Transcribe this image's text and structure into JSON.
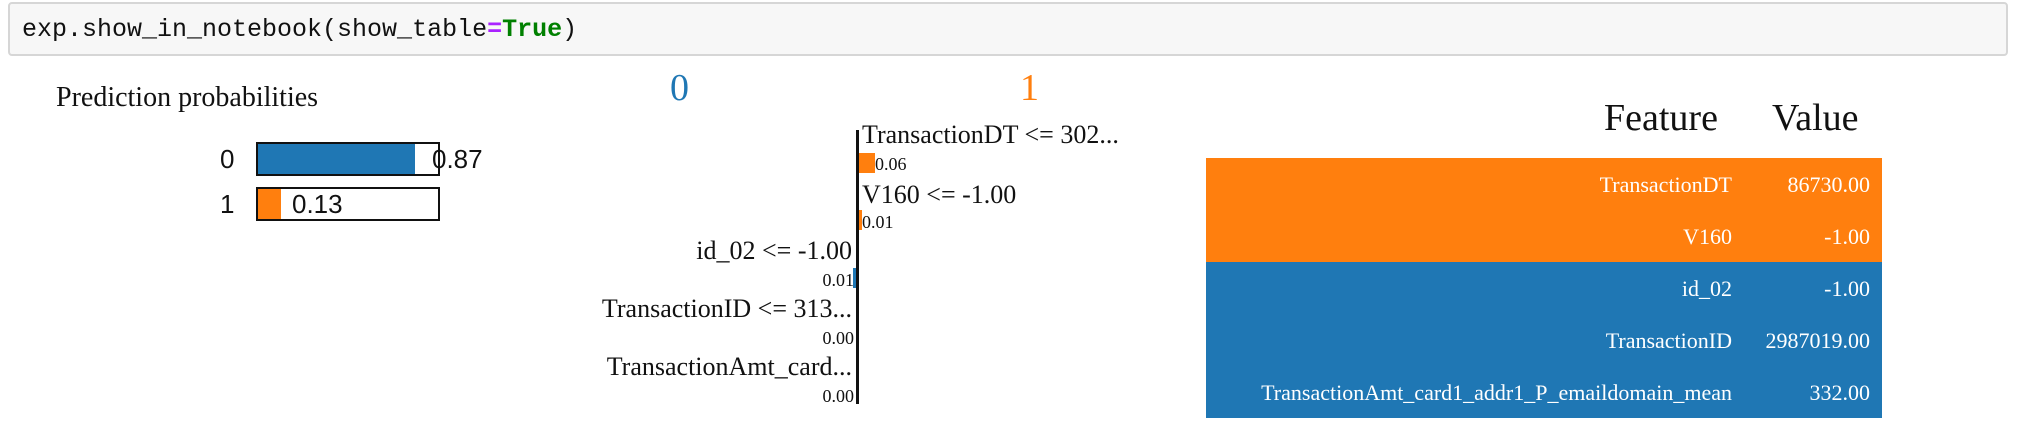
{
  "code_cell": {
    "prefix": "exp.show_in_notebook(show_table",
    "operator": "=",
    "keyword": "True",
    "suffix": ")"
  },
  "colors": {
    "class_0": "#1f77b4",
    "class_1": "#ff7f0e",
    "operator": "#aa22ff",
    "keyword": "#008000"
  },
  "prediction_probabilities": {
    "title": "Prediction probabilities",
    "items": [
      {
        "label": "0",
        "value": 0.87,
        "value_text": "0.87",
        "color": "#1f77b4"
      },
      {
        "label": "1",
        "value": 0.13,
        "value_text": "0.13",
        "color": "#ff7f0e"
      }
    ]
  },
  "explanation": {
    "class_labels": [
      "0",
      "1"
    ],
    "features": [
      {
        "condition": "TransactionDT <= 302...",
        "weight": 0.06,
        "weight_text": "0.06",
        "side": "1"
      },
      {
        "condition": "V160 <= -1.00",
        "weight": 0.01,
        "weight_text": "0.01",
        "side": "1"
      },
      {
        "condition": "id_02 <= -1.00",
        "weight": 0.01,
        "weight_text": "0.01",
        "side": "0"
      },
      {
        "condition": "TransactionID <= 313...",
        "weight": 0.0,
        "weight_text": "0.00",
        "side": "0"
      },
      {
        "condition": "TransactionAmt_card...",
        "weight": 0.0,
        "weight_text": "0.00",
        "side": "0"
      }
    ]
  },
  "feature_table": {
    "headers": [
      "Feature",
      "Value"
    ],
    "rows": [
      {
        "feature": "TransactionDT",
        "value": "86730.00",
        "color": "#ff7f0e"
      },
      {
        "feature": "V160",
        "value": "-1.00",
        "color": "#ff7f0e"
      },
      {
        "feature": "id_02",
        "value": "-1.00",
        "color": "#1f77b4"
      },
      {
        "feature": "TransactionID",
        "value": "2987019.00",
        "color": "#1f77b4"
      },
      {
        "feature": "TransactionAmt_card1_addr1_P_emaildomain_mean",
        "value": "332.00",
        "color": "#1f77b4"
      }
    ]
  }
}
